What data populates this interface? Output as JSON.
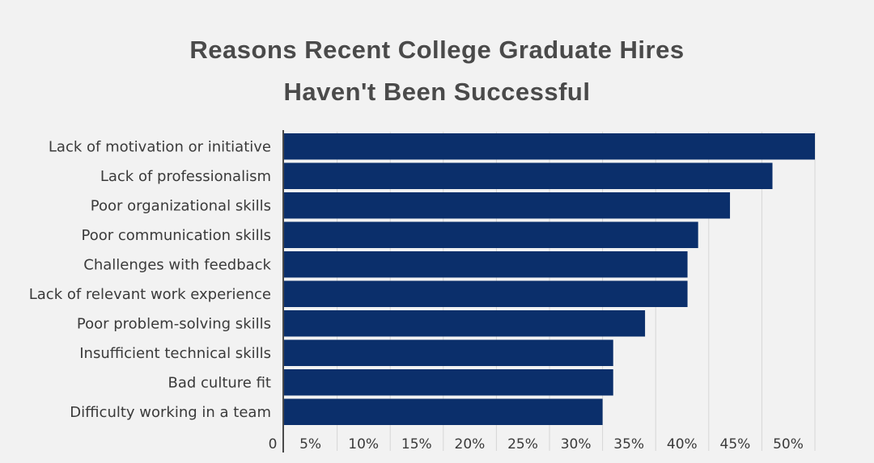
{
  "chart_data": {
    "type": "bar",
    "orientation": "horizontal",
    "title_lines": [
      "Reasons Recent College Graduate Hires",
      "Haven't Been Successful"
    ],
    "categories": [
      "Lack of motivation or initiative",
      "Lack of professionalism",
      "Poor organizational skills",
      "Poor communication skills",
      "Challenges with feedback",
      "Lack of relevant work experience",
      "Poor problem-solving skills",
      "Insufficient technical skills",
      "Bad culture fit",
      "Difficulty working in a team"
    ],
    "values": [
      50,
      46,
      42,
      39,
      38,
      38,
      34,
      31,
      31,
      30
    ],
    "xlim": [
      0,
      50
    ],
    "x_ticks": [
      0,
      5,
      10,
      15,
      20,
      25,
      30,
      35,
      40,
      45,
      50
    ],
    "x_tick_labels": [
      "0",
      "5%",
      "10%",
      "15%",
      "20%",
      "25%",
      "30%",
      "35%",
      "40%",
      "45%",
      "50%"
    ],
    "bar_color": "#0b2f6b",
    "grid": true,
    "legend": "none"
  }
}
